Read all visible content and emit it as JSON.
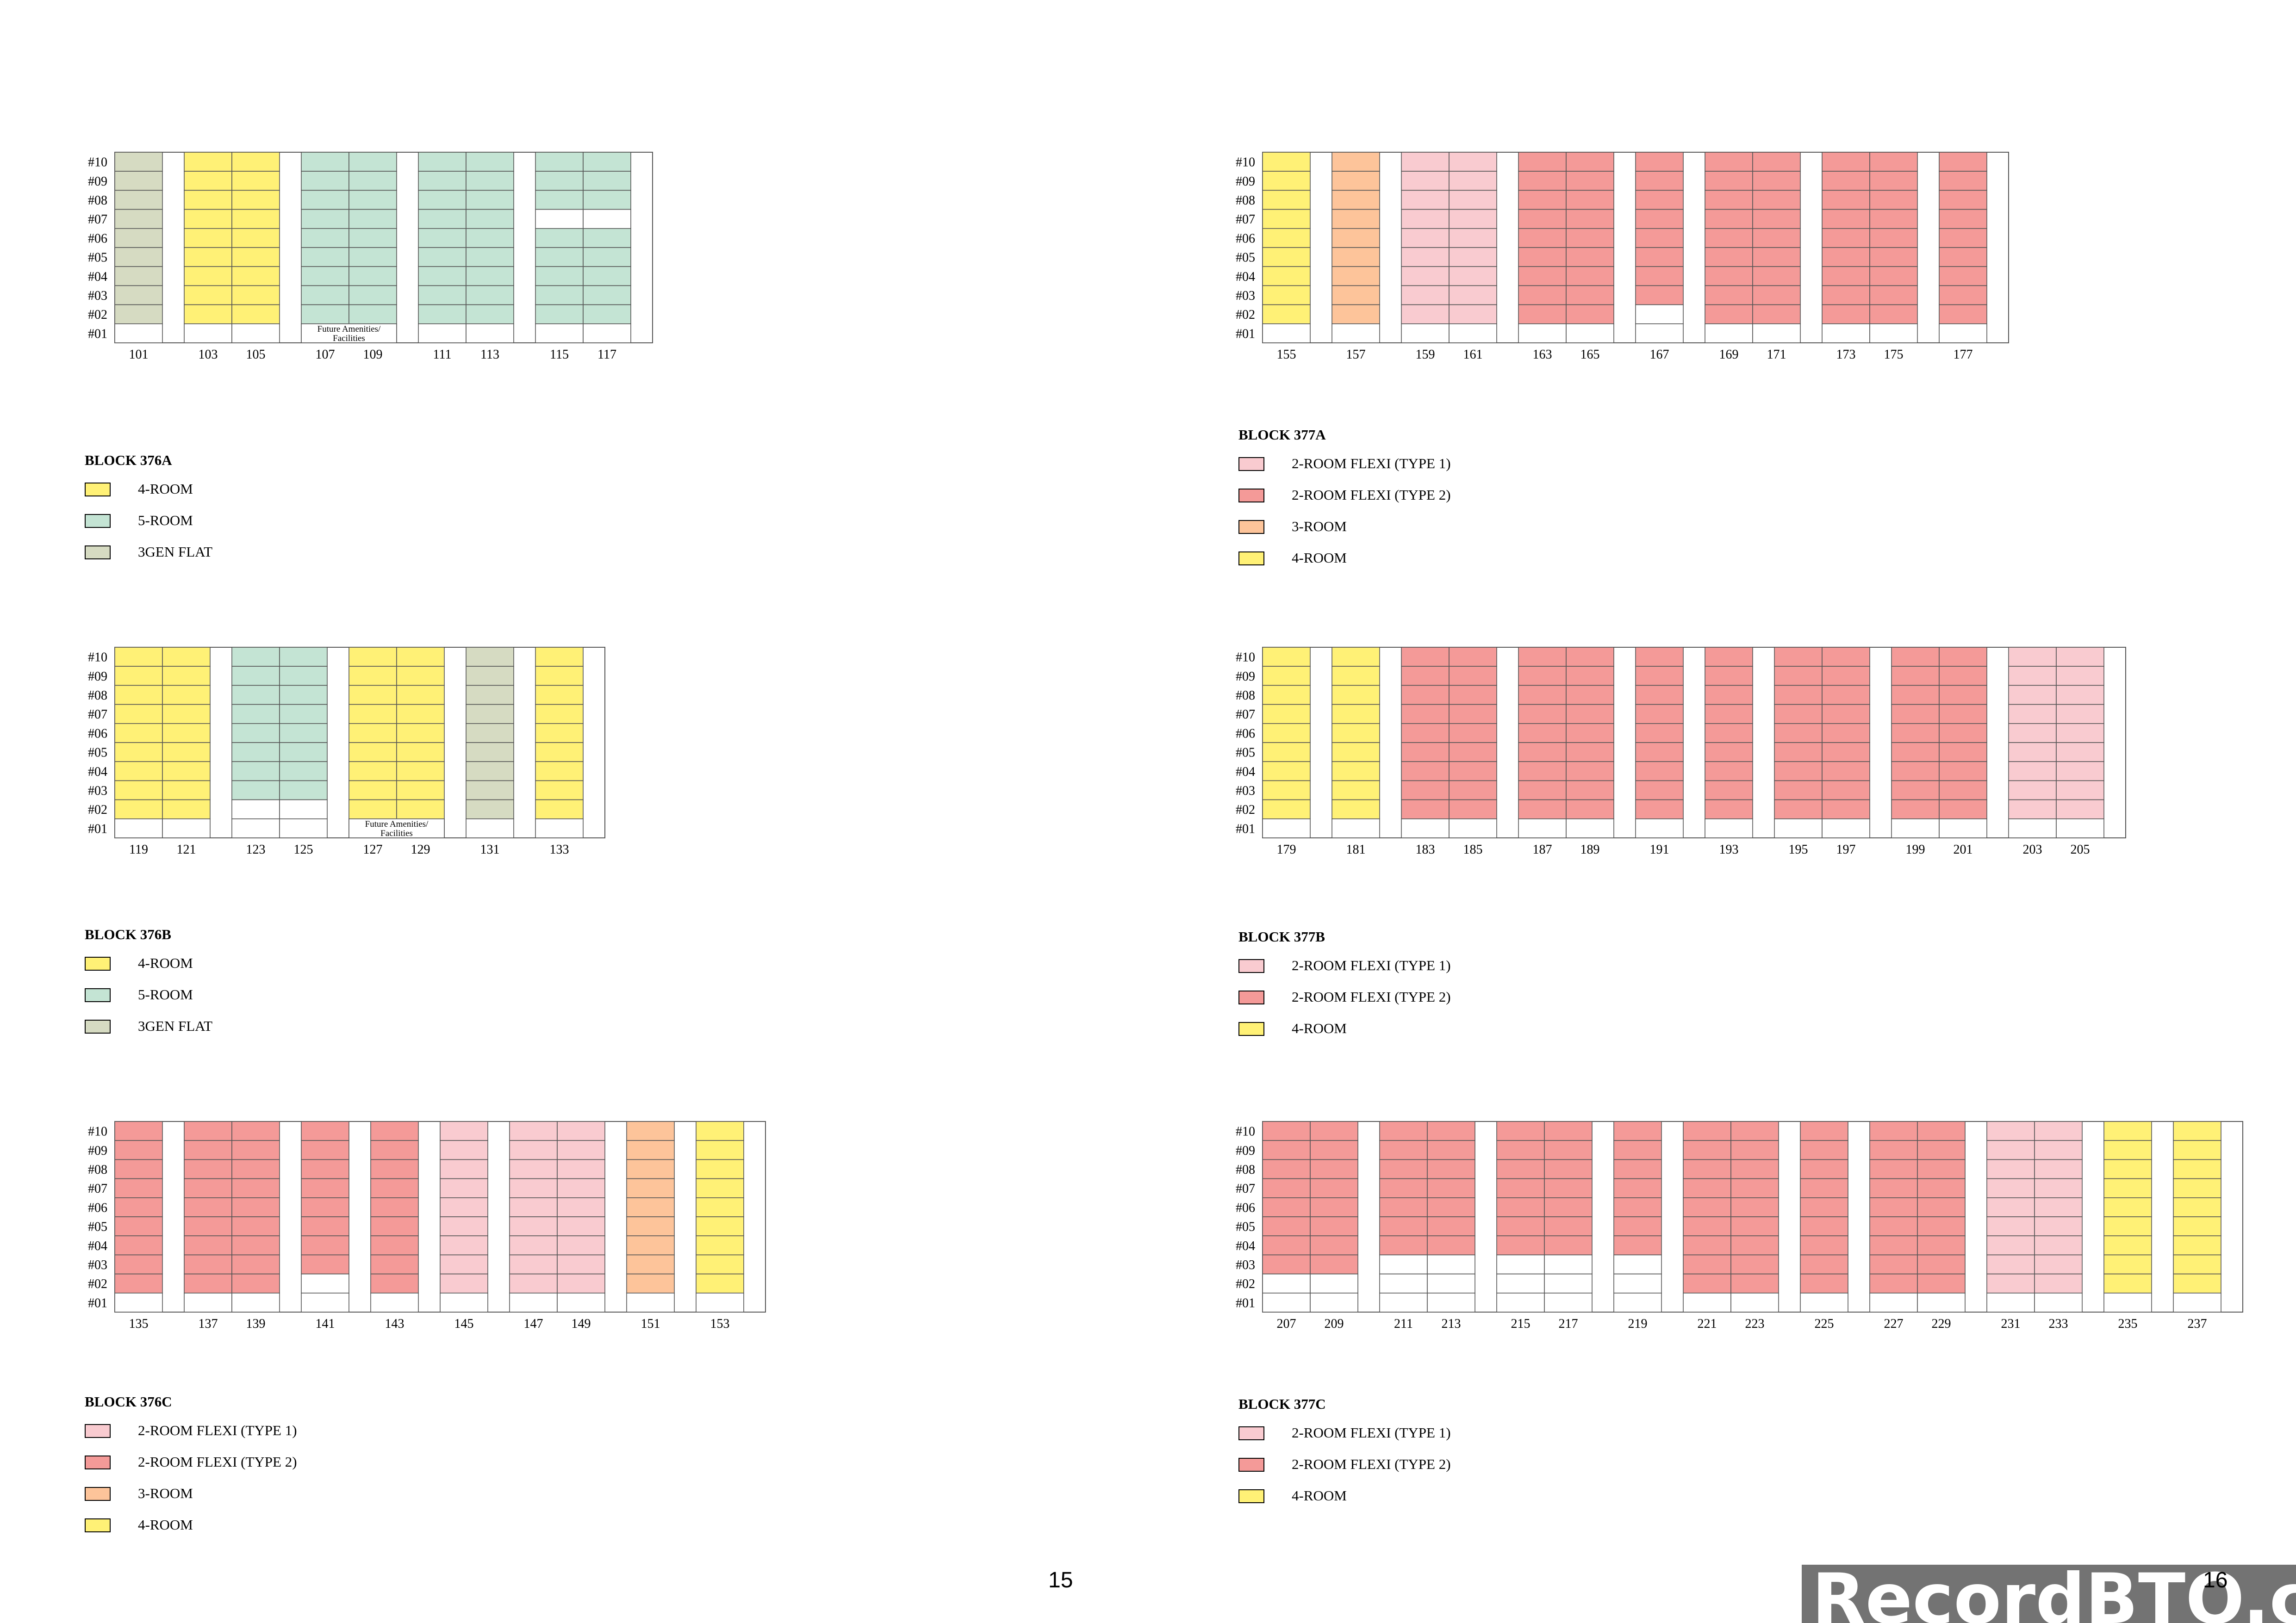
{
  "colors": {
    "4-room": "#fff176",
    "5-room": "#c4e4d4",
    "3gen": "#d6dbc2",
    "2rf1": "#f9cbd0",
    "2rf2": "#f49a98",
    "3-room": "#fdc49a",
    "empty": "#ffffff"
  },
  "floors": [
    "#10",
    "#09",
    "#08",
    "#07",
    "#06",
    "#05",
    "#04",
    "#03",
    "#02",
    "#01"
  ],
  "page_numbers": {
    "left": "15",
    "right": "16"
  },
  "watermark": "RecordBTO.com",
  "blocks": [
    {
      "id": "376A",
      "legend": {
        "title": "BLOCK 376A",
        "items": [
          {
            "type": "4-room",
            "label": "4-ROOM"
          },
          {
            "type": "5-room",
            "label": "5-ROOM"
          },
          {
            "type": "3gen",
            "label": "3GEN FLAT"
          }
        ]
      },
      "units": [
        {
          "num": "101",
          "t": "3gen",
          "empty": [
            1
          ]
        },
        null,
        {
          "num": "103",
          "t": "4-room",
          "empty": [
            1
          ]
        },
        {
          "num": "105",
          "t": "4-room",
          "empty": [
            1
          ]
        },
        null,
        {
          "num": "107",
          "t": "5-room",
          "empty": [
            1
          ]
        },
        {
          "num": "109",
          "t": "5-room",
          "empty": [
            1
          ]
        },
        null,
        {
          "num": "111",
          "t": "5-room",
          "empty": [
            1
          ]
        },
        {
          "num": "113",
          "t": "5-room",
          "empty": [
            1
          ]
        },
        null,
        {
          "num": "115",
          "t": "5-room",
          "empty": [
            1,
            7
          ]
        },
        {
          "num": "117",
          "t": "5-room",
          "empty": [
            1,
            7
          ]
        },
        null
      ],
      "notes": [
        {
          "text1": "Future Amenities/",
          "text2": "Facilities",
          "col_from": 5,
          "col_to": 6
        }
      ]
    },
    {
      "id": "376B",
      "legend": {
        "title": "BLOCK 376B",
        "items": [
          {
            "type": "4-room",
            "label": "4-ROOM"
          },
          {
            "type": "5-room",
            "label": "5-ROOM"
          },
          {
            "type": "3gen",
            "label": "3GEN FLAT"
          }
        ]
      },
      "units": [
        {
          "num": "119",
          "t": "4-room",
          "empty": [
            1
          ]
        },
        {
          "num": "121",
          "t": "4-room",
          "empty": [
            1
          ]
        },
        null,
        {
          "num": "123",
          "t": "5-room",
          "empty": [
            1,
            2
          ]
        },
        {
          "num": "125",
          "t": "5-room",
          "empty": [
            1,
            2
          ]
        },
        null,
        {
          "num": "127",
          "t": "4-room",
          "empty": [
            1
          ]
        },
        {
          "num": "129",
          "t": "4-room",
          "empty": [
            1
          ]
        },
        null,
        {
          "num": "131",
          "t": "3gen",
          "empty": [
            1
          ]
        },
        null,
        {
          "num": "133",
          "t": "4-room",
          "empty": [
            1
          ]
        },
        null
      ],
      "notes": [
        {
          "text1": "Future Amenities/",
          "text2": "Facilities",
          "col_from": 6,
          "col_to": 7
        }
      ]
    },
    {
      "id": "376C",
      "legend": {
        "title": "BLOCK 376C",
        "items": [
          {
            "type": "2rf1",
            "label": "2-ROOM FLEXI (TYPE 1)"
          },
          {
            "type": "2rf2",
            "label": "2-ROOM FLEXI (TYPE 2)"
          },
          {
            "type": "3-room",
            "label": "3-ROOM"
          },
          {
            "type": "4-room",
            "label": "4-ROOM"
          }
        ]
      },
      "units": [
        {
          "num": "135",
          "t": "2rf2",
          "empty": [
            1
          ]
        },
        null,
        {
          "num": "137",
          "t": "2rf2",
          "empty": [
            1
          ]
        },
        {
          "num": "139",
          "t": "2rf2",
          "empty": [
            1
          ]
        },
        null,
        {
          "num": "141",
          "t": "2rf2",
          "empty": [
            1,
            2
          ]
        },
        null,
        {
          "num": "143",
          "t": "2rf2",
          "empty": [
            1
          ]
        },
        null,
        {
          "num": "145",
          "t": "2rf1",
          "empty": [
            1
          ]
        },
        null,
        {
          "num": "147",
          "t": "2rf1",
          "empty": [
            1
          ]
        },
        {
          "num": "149",
          "t": "2rf1",
          "empty": [
            1
          ]
        },
        null,
        {
          "num": "151",
          "t": "3-room",
          "empty": [
            1
          ]
        },
        null,
        {
          "num": "153",
          "t": "4-room",
          "empty": [
            1
          ]
        },
        null
      ],
      "notes": []
    },
    {
      "id": "377A",
      "legend": {
        "title": "BLOCK 377A",
        "items": [
          {
            "type": "2rf1",
            "label": "2-ROOM FLEXI (TYPE 1)"
          },
          {
            "type": "2rf2",
            "label": "2-ROOM FLEXI (TYPE 2)"
          },
          {
            "type": "3-room",
            "label": "3-ROOM"
          },
          {
            "type": "4-room",
            "label": "4-ROOM"
          }
        ]
      },
      "units": [
        {
          "num": "155",
          "t": "4-room",
          "empty": [
            1
          ]
        },
        null,
        {
          "num": "157",
          "t": "3-room",
          "empty": [
            1
          ]
        },
        null,
        {
          "num": "159",
          "t": "2rf1",
          "empty": [
            1
          ]
        },
        {
          "num": "161",
          "t": "2rf1",
          "empty": [
            1
          ]
        },
        null,
        {
          "num": "163",
          "t": "2rf2",
          "empty": [
            1
          ]
        },
        {
          "num": "165",
          "t": "2rf2",
          "empty": [
            1
          ]
        },
        null,
        {
          "num": "167",
          "t": "2rf2",
          "empty": [
            1,
            2
          ]
        },
        null,
        {
          "num": "169",
          "t": "2rf2",
          "empty": [
            1
          ]
        },
        {
          "num": "171",
          "t": "2rf2",
          "empty": [
            1
          ]
        },
        null,
        {
          "num": "173",
          "t": "2rf2",
          "empty": [
            1
          ]
        },
        {
          "num": "175",
          "t": "2rf2",
          "empty": [
            1
          ]
        },
        null,
        {
          "num": "177",
          "t": "2rf2",
          "empty": [
            1
          ]
        },
        null
      ],
      "notes": []
    },
    {
      "id": "377B",
      "legend": {
        "title": "BLOCK 377B",
        "items": [
          {
            "type": "2rf1",
            "label": "2-ROOM FLEXI (TYPE 1)"
          },
          {
            "type": "2rf2",
            "label": "2-ROOM FLEXI (TYPE 2)"
          },
          {
            "type": "4-room",
            "label": "4-ROOM"
          }
        ]
      },
      "units": [
        {
          "num": "179",
          "t": "4-room",
          "empty": [
            1
          ]
        },
        null,
        {
          "num": "181",
          "t": "4-room",
          "empty": [
            1
          ]
        },
        null,
        {
          "num": "183",
          "t": "2rf2",
          "empty": [
            1
          ]
        },
        {
          "num": "185",
          "t": "2rf2",
          "empty": [
            1
          ]
        },
        null,
        {
          "num": "187",
          "t": "2rf2",
          "empty": [
            1
          ]
        },
        {
          "num": "189",
          "t": "2rf2",
          "empty": [
            1
          ]
        },
        null,
        {
          "num": "191",
          "t": "2rf2",
          "empty": [
            1
          ]
        },
        null,
        {
          "num": "193",
          "t": "2rf2",
          "empty": [
            1
          ]
        },
        null,
        {
          "num": "195",
          "t": "2rf2",
          "empty": [
            1
          ]
        },
        {
          "num": "197",
          "t": "2rf2",
          "empty": [
            1
          ]
        },
        null,
        {
          "num": "199",
          "t": "2rf2",
          "empty": [
            1
          ]
        },
        {
          "num": "201",
          "t": "2rf2",
          "empty": [
            1
          ]
        },
        null,
        {
          "num": "203",
          "t": "2rf1",
          "empty": [
            1
          ]
        },
        {
          "num": "205",
          "t": "2rf1",
          "empty": [
            1
          ]
        },
        null
      ],
      "notes": []
    },
    {
      "id": "377C",
      "legend": {
        "title": "BLOCK 377C",
        "items": [
          {
            "type": "2rf1",
            "label": "2-ROOM FLEXI (TYPE 1)"
          },
          {
            "type": "2rf2",
            "label": "2-ROOM FLEXI (TYPE 2)"
          },
          {
            "type": "4-room",
            "label": "4-ROOM"
          }
        ]
      },
      "units": [
        {
          "num": "207",
          "t": "2rf2",
          "empty": [
            1,
            2
          ]
        },
        {
          "num": "209",
          "t": "2rf2",
          "empty": [
            1,
            2
          ]
        },
        null,
        {
          "num": "211",
          "t": "2rf2",
          "empty": [
            1,
            2,
            3
          ]
        },
        {
          "num": "213",
          "t": "2rf2",
          "empty": [
            1,
            2,
            3
          ]
        },
        null,
        {
          "num": "215",
          "t": "2rf2",
          "empty": [
            1,
            2,
            3
          ]
        },
        {
          "num": "217",
          "t": "2rf2",
          "empty": [
            1,
            2,
            3
          ]
        },
        null,
        {
          "num": "219",
          "t": "2rf2",
          "empty": [
            1,
            2,
            3
          ]
        },
        null,
        {
          "num": "221",
          "t": "2rf2",
          "empty": [
            1
          ]
        },
        {
          "num": "223",
          "t": "2rf2",
          "empty": [
            1
          ]
        },
        null,
        {
          "num": "225",
          "t": "2rf2",
          "empty": [
            1
          ]
        },
        null,
        {
          "num": "227",
          "t": "2rf2",
          "empty": [
            1
          ]
        },
        {
          "num": "229",
          "t": "2rf2",
          "empty": [
            1
          ]
        },
        null,
        {
          "num": "231",
          "t": "2rf1",
          "empty": [
            1
          ]
        },
        {
          "num": "233",
          "t": "2rf1",
          "empty": [
            1
          ]
        },
        null,
        {
          "num": "235",
          "t": "4-room",
          "empty": [
            1
          ]
        },
        null,
        {
          "num": "237",
          "t": "4-room",
          "empty": [
            1
          ]
        },
        null
      ],
      "notes": []
    }
  ]
}
